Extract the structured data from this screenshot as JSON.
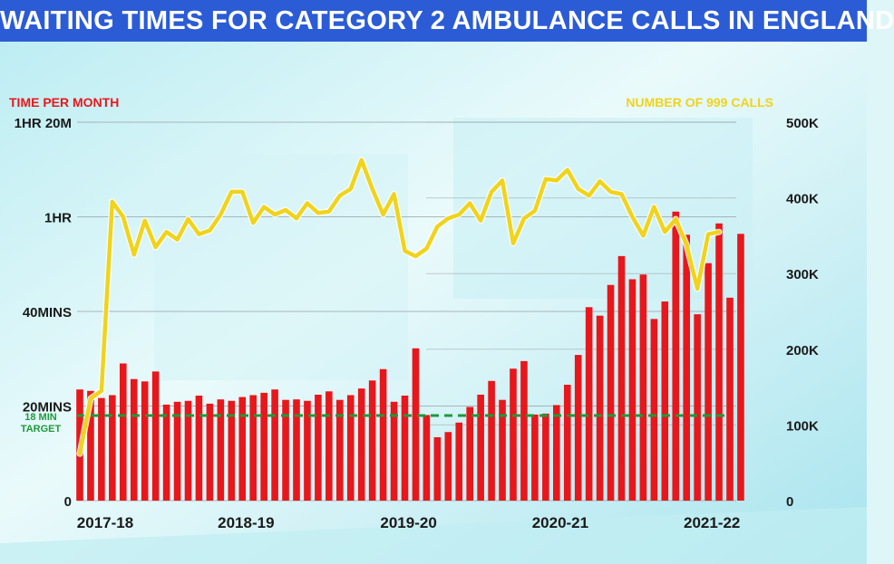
{
  "title": "WAITING TIMES FOR CATEGORY 2 AMBULANCE CALLS IN ENGLAND",
  "colors": {
    "title_bg": "#2b5cd6",
    "bars": "#e8171b",
    "line": "#f0d31c",
    "target": "#1e9a3a"
  },
  "chart_data": {
    "type": "bar+line",
    "left_axis_title": "TIME PER MONTH",
    "right_axis_title": "NUMBER OF 999 CALLS",
    "left_ticks": [
      "0",
      "20MINS",
      "40MINS",
      "1HR",
      "1HR 20M"
    ],
    "left_tick_values": [
      0,
      20,
      40,
      60,
      80
    ],
    "left_ylim_minutes": [
      0,
      80
    ],
    "right_ticks": [
      "0",
      "100K",
      "200K",
      "300K",
      "400K",
      "500K"
    ],
    "right_tick_values": [
      0,
      100000,
      200000,
      300000,
      400000,
      500000
    ],
    "right_ylim": [
      0,
      500000
    ],
    "x_labels": [
      {
        "label": "2017-18",
        "month_index": 0
      },
      {
        "label": "2018-19",
        "month_index": 13
      },
      {
        "label": "2019-20",
        "month_index": 28
      },
      {
        "label": "2020-21",
        "month_index": 42
      },
      {
        "label": "2021-22",
        "month_index": 56
      }
    ],
    "target": {
      "label_line1": "18 MIN",
      "label_line2": "TARGET",
      "value_minutes": 18
    },
    "series": [
      {
        "name": "TIME PER MONTH",
        "type": "bar",
        "axis": "left",
        "unit": "minutes",
        "values": [
          23.5,
          23.2,
          21.7,
          22.3,
          29,
          25.7,
          25.2,
          27.3,
          20.3,
          20.9,
          21.1,
          22.2,
          20.5,
          21.4,
          21.1,
          21.9,
          22.3,
          22.8,
          23.5,
          21.3,
          21.4,
          21.1,
          22.4,
          23.1,
          21.3,
          22.3,
          23.7,
          25.4,
          27.8,
          20.9,
          22.2,
          32.2,
          18.1,
          13.4,
          14.5,
          16.5,
          19.8,
          22.4,
          25.3,
          21.3,
          27.9,
          29.5,
          18.2,
          18.4,
          20.2,
          24.5,
          30.8,
          40.9,
          39.1,
          45.6,
          51.7,
          46.8,
          47.8,
          38.4,
          42.1,
          61.1,
          56.2,
          39.4,
          50.2,
          58.6,
          42.9,
          56.4
        ]
      },
      {
        "name": "NUMBER OF 999 CALLS",
        "type": "line",
        "axis": "right",
        "unit": "calls",
        "values": [
          62000,
          135000,
          145000,
          395000,
          375000,
          325000,
          370000,
          335000,
          355000,
          345000,
          372000,
          352000,
          357000,
          378000,
          408000,
          408000,
          367000,
          388000,
          378000,
          384000,
          373000,
          393000,
          380000,
          382000,
          403000,
          412000,
          450000,
          412000,
          378000,
          405000,
          330000,
          323000,
          333000,
          362000,
          373000,
          378000,
          393000,
          370000,
          408000,
          423000,
          340000,
          373000,
          383000,
          425000,
          423000,
          437000,
          412000,
          403000,
          422000,
          408000,
          405000,
          375000,
          350000,
          388000,
          355000,
          372000,
          338000,
          280000,
          352000,
          355000
        ]
      }
    ],
    "grid": true,
    "legend": "none"
  }
}
